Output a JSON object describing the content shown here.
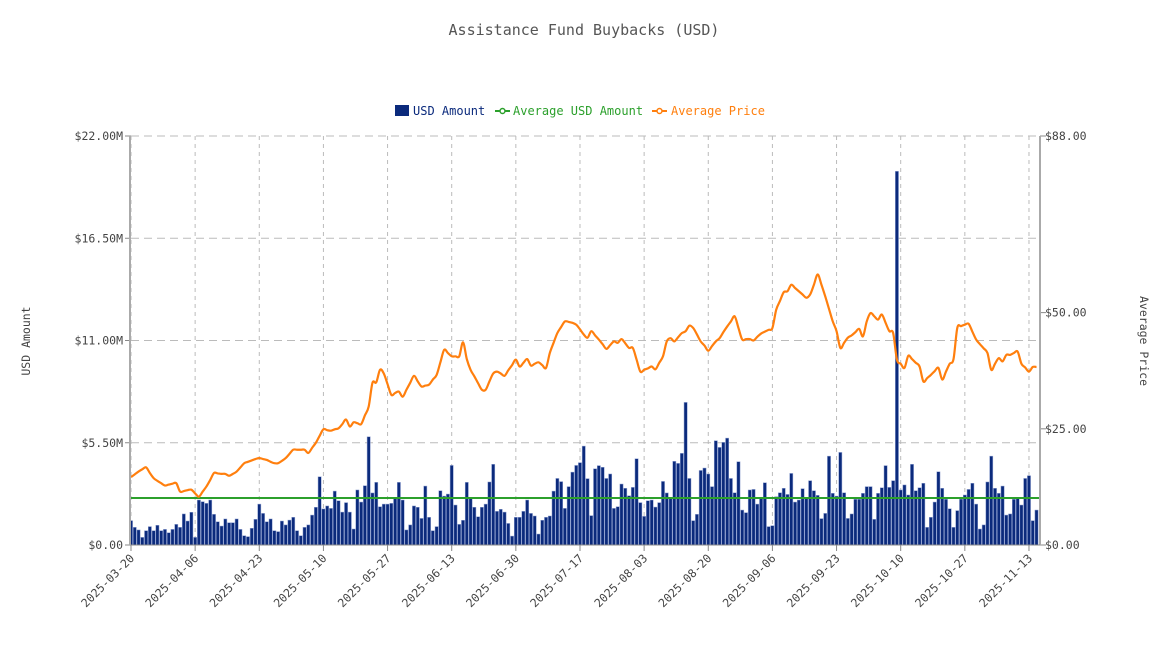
{
  "chart_data": {
    "type": "bar",
    "title": "Assistance Fund Buybacks (USD)",
    "ylabel": "USD Amount",
    "y2label": "Average Price",
    "ylim": [
      0,
      22000000
    ],
    "y2lim": [
      0,
      88
    ],
    "yticks": [
      "$0.00",
      "$5.50M",
      "$11.00M",
      "$16.50M",
      "$22.00M"
    ],
    "ytick_values": [
      0,
      5500000,
      11000000,
      16500000,
      22000000
    ],
    "y2ticks": [
      "$0.00",
      "$25.00",
      "$50.00",
      "$88.00"
    ],
    "y2tick_values": [
      0,
      25,
      50,
      88
    ],
    "xticks": [
      "2025-03-20",
      "2025-04-06",
      "2025-04-23",
      "2025-05-10",
      "2025-05-27",
      "2025-06-13",
      "2025-06-30",
      "2025-07-17",
      "2025-08-03",
      "2025-08-20",
      "2025-09-06",
      "2025-09-23",
      "2025-10-10",
      "2025-10-27",
      "2025-11-13"
    ],
    "grid": true,
    "legend_placement": "top-center",
    "colors": {
      "usd_amount": "#0b2a7c",
      "average_usd_amount": "#2ca02c",
      "average_price": "#ff7f0e"
    },
    "legend": [
      "USD Amount",
      "Average USD Amount",
      "Average Price"
    ],
    "average_usd_amount": 2530000,
    "x": [
      "2025-03-20",
      "2025-03-21",
      "2025-03-22",
      "2025-03-23",
      "2025-03-24",
      "2025-03-25",
      "2025-03-26",
      "2025-03-27",
      "2025-03-28",
      "2025-03-29",
      "2025-03-30",
      "2025-03-31",
      "2025-04-01",
      "2025-04-02",
      "2025-04-03",
      "2025-04-04",
      "2025-04-05",
      "2025-04-06",
      "2025-04-07",
      "2025-04-08",
      "2025-04-09",
      "2025-04-10",
      "2025-04-11",
      "2025-04-12",
      "2025-04-13",
      "2025-04-14",
      "2025-04-15",
      "2025-04-16",
      "2025-04-17",
      "2025-04-18",
      "2025-04-19",
      "2025-04-20",
      "2025-04-21",
      "2025-04-22",
      "2025-04-23",
      "2025-04-24",
      "2025-04-25",
      "2025-04-26",
      "2025-04-27",
      "2025-04-28",
      "2025-04-29",
      "2025-04-30",
      "2025-05-01",
      "2025-05-02",
      "2025-05-03",
      "2025-05-04",
      "2025-05-05",
      "2025-05-06",
      "2025-05-07",
      "2025-05-08",
      "2025-05-09",
      "2025-05-10",
      "2025-05-11",
      "2025-05-12",
      "2025-05-13",
      "2025-05-14",
      "2025-05-15",
      "2025-05-16",
      "2025-05-17",
      "2025-05-18",
      "2025-05-19",
      "2025-05-20",
      "2025-05-21",
      "2025-05-22",
      "2025-05-23",
      "2025-05-24",
      "2025-05-25",
      "2025-05-26",
      "2025-05-27",
      "2025-05-28",
      "2025-05-29",
      "2025-05-30",
      "2025-05-31",
      "2025-06-01",
      "2025-06-02",
      "2025-06-03",
      "2025-06-04",
      "2025-06-05",
      "2025-06-06",
      "2025-06-07",
      "2025-06-08",
      "2025-06-09",
      "2025-06-10",
      "2025-06-11",
      "2025-06-12",
      "2025-06-13",
      "2025-06-14",
      "2025-06-15",
      "2025-06-16",
      "2025-06-17",
      "2025-06-18",
      "2025-06-19",
      "2025-06-20",
      "2025-06-21",
      "2025-06-22",
      "2025-06-23",
      "2025-06-24",
      "2025-06-25",
      "2025-06-26",
      "2025-06-27",
      "2025-06-28",
      "2025-06-29",
      "2025-06-30",
      "2025-07-01",
      "2025-07-02",
      "2025-07-03",
      "2025-07-04",
      "2025-07-05",
      "2025-07-06",
      "2025-07-07",
      "2025-07-08",
      "2025-07-09",
      "2025-07-10",
      "2025-07-11",
      "2025-07-12",
      "2025-07-13",
      "2025-07-14",
      "2025-07-15",
      "2025-07-16",
      "2025-07-17",
      "2025-07-18",
      "2025-07-19",
      "2025-07-20",
      "2025-07-21",
      "2025-07-22",
      "2025-07-23",
      "2025-07-24",
      "2025-07-25",
      "2025-07-26",
      "2025-07-27",
      "2025-07-28",
      "2025-07-29",
      "2025-07-30",
      "2025-07-31",
      "2025-08-01",
      "2025-08-02",
      "2025-08-03",
      "2025-08-04",
      "2025-08-05",
      "2025-08-06",
      "2025-08-07",
      "2025-08-08",
      "2025-08-09",
      "2025-08-10",
      "2025-08-11",
      "2025-08-12",
      "2025-08-13",
      "2025-08-14",
      "2025-08-15",
      "2025-08-16",
      "2025-08-17",
      "2025-08-18",
      "2025-08-19",
      "2025-08-20",
      "2025-08-21",
      "2025-08-22",
      "2025-08-23",
      "2025-08-24",
      "2025-08-25",
      "2025-08-26",
      "2025-08-27",
      "2025-08-28",
      "2025-08-29",
      "2025-08-30",
      "2025-08-31",
      "2025-09-01",
      "2025-09-02",
      "2025-09-03",
      "2025-09-04",
      "2025-09-05",
      "2025-09-06",
      "2025-09-07",
      "2025-09-08",
      "2025-09-09",
      "2025-09-10",
      "2025-09-11",
      "2025-09-12",
      "2025-09-13",
      "2025-09-14",
      "2025-09-15",
      "2025-09-16",
      "2025-09-17",
      "2025-09-18",
      "2025-09-19",
      "2025-09-20",
      "2025-09-21",
      "2025-09-22",
      "2025-09-23",
      "2025-09-24",
      "2025-09-25",
      "2025-09-26",
      "2025-09-27",
      "2025-09-28",
      "2025-09-29",
      "2025-09-30",
      "2025-10-01",
      "2025-10-02",
      "2025-10-03",
      "2025-10-04",
      "2025-10-05",
      "2025-10-06",
      "2025-10-07",
      "2025-10-08",
      "2025-10-09",
      "2025-10-10",
      "2025-10-11",
      "2025-10-12",
      "2025-10-13",
      "2025-10-14",
      "2025-10-15",
      "2025-10-16",
      "2025-10-17",
      "2025-10-18",
      "2025-10-19",
      "2025-10-20",
      "2025-10-21",
      "2025-10-22",
      "2025-10-23",
      "2025-10-24",
      "2025-10-25",
      "2025-10-26",
      "2025-10-27",
      "2025-10-28",
      "2025-10-29",
      "2025-10-30",
      "2025-10-31",
      "2025-11-01",
      "2025-11-02",
      "2025-11-03",
      "2025-11-04",
      "2025-11-05",
      "2025-11-06",
      "2025-11-07",
      "2025-11-08",
      "2025-11-09",
      "2025-11-10",
      "2025-11-11",
      "2025-11-12",
      "2025-11-13",
      "2025-11-14",
      "2025-11-15"
    ],
    "series": [
      {
        "name": "USD Amount",
        "type": "bar",
        "axis": "left",
        "unit": "millions USD",
        "values": [
          1.31,
          0.95,
          0.81,
          0.41,
          0.77,
          0.99,
          0.77,
          1.06,
          0.77,
          0.84,
          0.66,
          0.84,
          1.11,
          0.95,
          1.67,
          1.29,
          1.76,
          0.41,
          2.42,
          2.33,
          2.24,
          2.42,
          1.65,
          1.25,
          1.02,
          1.4,
          1.2,
          1.2,
          1.4,
          0.84,
          0.5,
          0.45,
          0.9,
          1.38,
          2.2,
          1.7,
          1.25,
          1.4,
          0.77,
          0.72,
          1.29,
          1.08,
          1.34,
          1.49,
          0.77,
          0.5,
          0.95,
          1.08,
          1.61,
          2.03,
          3.67,
          1.94,
          2.1,
          1.97,
          2.9,
          2.38,
          1.77,
          2.28,
          1.77,
          0.86,
          2.96,
          2.31,
          3.19,
          5.82,
          2.8,
          3.37,
          2.06,
          2.2,
          2.2,
          2.24,
          2.56,
          3.37,
          2.42,
          0.81,
          1.08,
          2.1,
          2.03,
          1.43,
          3.17,
          1.49,
          0.77,
          0.99,
          2.92,
          2.63,
          2.74,
          4.28,
          2.15,
          1.11,
          1.33,
          3.37,
          2.56,
          2.03,
          1.52,
          2.03,
          2.2,
          3.39,
          4.34,
          1.81,
          1.92,
          1.77,
          1.16,
          0.48,
          1.49,
          1.49,
          1.81,
          2.42,
          1.7,
          1.56,
          0.59,
          1.33,
          1.49,
          1.56,
          2.9,
          3.58,
          3.41,
          1.97,
          3.14,
          3.92,
          4.28,
          4.43,
          5.32,
          3.57,
          1.58,
          4.1,
          4.27,
          4.18,
          3.58,
          3.82,
          1.97,
          2.06,
          3.28,
          3.05,
          2.65,
          3.1,
          4.64,
          2.28,
          1.54,
          2.38,
          2.42,
          2.04,
          2.28,
          3.42,
          2.8,
          2.56,
          4.5,
          4.39,
          4.93,
          7.67,
          3.58,
          1.31,
          1.65,
          4.01,
          4.14,
          3.82,
          3.14,
          5.61,
          5.25,
          5.52,
          5.75,
          3.58,
          2.81,
          4.48,
          1.88,
          1.74,
          2.96,
          2.99,
          2.2,
          2.56,
          3.35,
          0.99,
          1.04,
          2.6,
          2.81,
          3.05,
          2.72,
          3.85,
          2.31,
          2.42,
          3.03,
          2.56,
          3.46,
          2.92,
          2.67,
          1.42,
          1.7,
          4.78,
          2.78,
          2.63,
          4.98,
          2.81,
          1.43,
          1.67,
          2.46,
          2.46,
          2.78,
          3.14,
          3.14,
          1.38,
          2.78,
          3.08,
          4.27,
          3.1,
          3.46,
          20.1,
          2.96,
          3.23,
          2.69,
          4.34,
          2.92,
          3.08,
          3.32,
          0.95,
          1.49,
          2.31,
          3.94,
          3.05,
          2.46,
          1.95,
          0.95,
          1.85,
          2.47,
          2.69,
          2.99,
          3.32,
          2.2,
          0.86,
          1.08,
          3.39,
          4.78,
          3.05,
          2.78,
          3.17,
          1.61,
          1.67,
          2.46,
          2.56,
          2.15,
          3.58,
          3.73,
          1.31,
          1.88
        ]
      },
      {
        "name": "Average Price",
        "type": "line",
        "axis": "right",
        "unit": "USD",
        "values": [
          14.6,
          15.2,
          15.8,
          16.3,
          16.7,
          15.5,
          14.4,
          13.8,
          13.3,
          12.8,
          13.0,
          13.2,
          13.3,
          11.5,
          11.6,
          11.8,
          11.9,
          11.1,
          10.4,
          11.5,
          12.6,
          14.0,
          15.5,
          15.4,
          15.3,
          15.3,
          14.9,
          15.3,
          15.8,
          16.7,
          17.6,
          17.9,
          18.2,
          18.5,
          18.7,
          18.5,
          18.3,
          17.9,
          17.6,
          17.6,
          18.1,
          18.7,
          19.6,
          20.5,
          20.5,
          20.5,
          20.5,
          19.8,
          20.9,
          22.0,
          23.5,
          24.9,
          24.7,
          24.6,
          24.9,
          25.1,
          26.0,
          27.0,
          25.5,
          26.4,
          26.2,
          26.0,
          27.9,
          29.8,
          34.9,
          35.0,
          37.7,
          36.9,
          34.6,
          32.3,
          32.7,
          33.0,
          31.9,
          33.4,
          34.9,
          36.4,
          35.2,
          34.1,
          34.3,
          34.5,
          35.6,
          36.6,
          39.3,
          42.0,
          41.3,
          40.6,
          40.6,
          40.6,
          43.6,
          40.0,
          37.7,
          36.3,
          34.8,
          33.4,
          33.4,
          35.2,
          36.9,
          37.3,
          36.9,
          36.4,
          37.6,
          38.7,
          39.9,
          38.4,
          39.2,
          40.0,
          38.6,
          39.0,
          39.3,
          38.7,
          38.1,
          41.3,
          43.5,
          45.6,
          46.9,
          48.1,
          48.0,
          47.8,
          47.4,
          46.4,
          45.3,
          44.6,
          46.0,
          45.1,
          44.2,
          43.2,
          42.2,
          43.0,
          43.8,
          43.5,
          44.3,
          43.4,
          42.4,
          42.4,
          39.9,
          37.3,
          37.7,
          38.0,
          38.4,
          37.8,
          39.2,
          40.6,
          43.8,
          44.5,
          43.8,
          44.7,
          45.6,
          46.0,
          47.2,
          46.7,
          45.3,
          43.8,
          42.9,
          41.8,
          42.8,
          43.8,
          44.5,
          45.8,
          47.0,
          48.1,
          49.2,
          46.7,
          44.2,
          44.3,
          44.3,
          44.0,
          44.8,
          45.5,
          45.9,
          46.3,
          46.7,
          50.6,
          52.5,
          54.4,
          54.6,
          56.0,
          55.3,
          54.6,
          53.9,
          53.2,
          53.9,
          56.0,
          58.2,
          56.0,
          53.5,
          50.8,
          48.1,
          46.0,
          42.4,
          43.5,
          44.6,
          45.1,
          45.8,
          46.5,
          44.9,
          48.1,
          49.9,
          49.2,
          48.5,
          49.6,
          47.8,
          46.0,
          45.6,
          39.9,
          39.0,
          38.1,
          40.7,
          40.0,
          39.2,
          38.4,
          35.2,
          35.9,
          36.6,
          37.4,
          38.1,
          35.6,
          37.3,
          39.0,
          40.0,
          46.7,
          47.1,
          47.4,
          47.6,
          45.9,
          44.2,
          43.2,
          42.3,
          41.3,
          37.7,
          39.0,
          40.2,
          39.5,
          40.9,
          40.9,
          41.3,
          41.6,
          39.0,
          38.2,
          37.3,
          38.3,
          38.3
        ]
      }
    ]
  }
}
